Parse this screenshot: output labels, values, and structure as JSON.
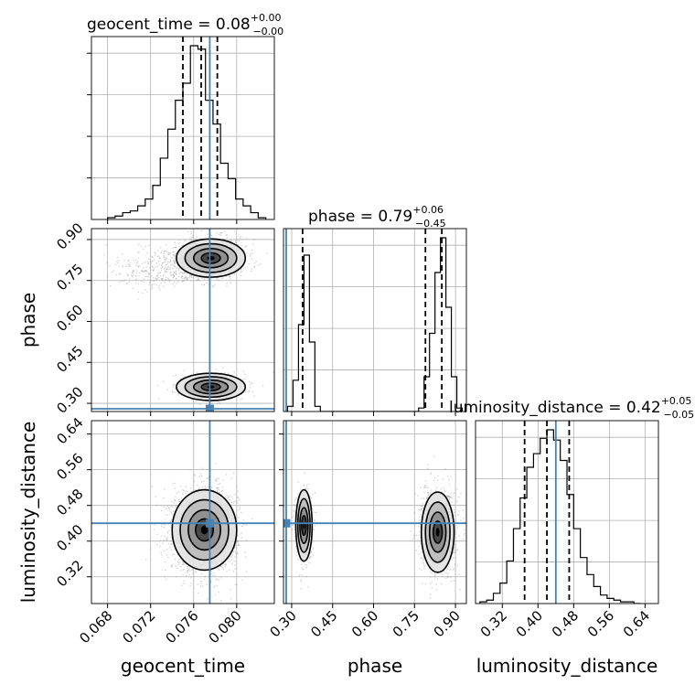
{
  "colors": {
    "truth": "#4682b4",
    "hist": "#000000",
    "grid": "#b0b0b0",
    "scatter": "#8a8a8a"
  },
  "titles": {
    "geocent_time": {
      "name": "geocent_time",
      "median": "0.08",
      "plus": "+0.00",
      "minus": "−0.00"
    },
    "phase": {
      "name": "phase",
      "median": "0.79",
      "plus": "+0.06",
      "minus": "−0.45"
    },
    "luminosity_distance": {
      "name": "luminosity_distance",
      "median": "0.42",
      "plus": "+0.05",
      "minus": "−0.05"
    }
  },
  "chart_data": {
    "type": "corner",
    "parameters": [
      "geocent_time",
      "phase",
      "luminosity_distance"
    ],
    "truths": {
      "geocent_time": 0.0775,
      "phase": 0.28,
      "luminosity_distance": 0.44
    },
    "axes": {
      "geocent_time": {
        "range": [
          0.0665,
          0.0835
        ],
        "ticks": [
          "0.068",
          "0.072",
          "0.076",
          "0.080"
        ],
        "tick_values": [
          0.068,
          0.072,
          0.076,
          0.08
        ],
        "label": "geocent_time"
      },
      "phase": {
        "range": [
          0.27,
          0.94
        ],
        "ticks": [
          "0.30",
          "0.45",
          "0.60",
          "0.75",
          "0.90"
        ],
        "tick_values": [
          0.3,
          0.45,
          0.6,
          0.75,
          0.9
        ],
        "label": "phase"
      },
      "luminosity_distance": {
        "range": [
          0.26,
          0.67
        ],
        "ticks": [
          "0.32",
          "0.40",
          "0.48",
          "0.56",
          "0.64"
        ],
        "tick_values": [
          0.32,
          0.4,
          0.48,
          0.56,
          0.64
        ],
        "label": "luminosity_distance"
      }
    },
    "histograms": [
      {
        "param": "geocent_time",
        "bin_edges": [
          0.068,
          0.0687,
          0.0694,
          0.0701,
          0.0708,
          0.0715,
          0.0722,
          0.0729,
          0.0736,
          0.0743,
          0.075,
          0.0757,
          0.0764,
          0.0771,
          0.0778,
          0.0785,
          0.0792,
          0.0799,
          0.0806,
          0.0813,
          0.082,
          0.0827
        ],
        "counts": [
          1,
          2,
          4,
          5,
          8,
          12,
          20,
          36,
          53,
          70,
          80,
          102,
          100,
          70,
          56,
          33,
          24,
          12,
          8,
          4,
          1
        ],
        "quantiles": [
          0.075,
          0.0767,
          0.0782
        ]
      },
      {
        "param": "phase",
        "bin_edges": [
          0.285,
          0.305,
          0.325,
          0.345,
          0.365,
          0.385,
          0.405,
          0.425,
          0.445,
          0.465,
          0.485,
          0.505,
          0.525,
          0.545,
          0.565,
          0.585,
          0.605,
          0.625,
          0.645,
          0.665,
          0.685,
          0.705,
          0.725,
          0.745,
          0.765,
          0.785,
          0.805,
          0.825,
          0.845,
          0.865,
          0.885,
          0.905,
          0.925
        ],
        "counts": [
          3,
          18,
          50,
          90,
          40,
          3,
          0,
          0,
          0,
          0,
          0,
          0,
          0,
          0,
          0,
          0,
          0,
          0,
          0,
          0,
          0,
          0,
          0,
          0,
          2,
          20,
          45,
          80,
          100,
          60,
          20,
          2
        ],
        "quantiles": [
          0.34,
          0.79,
          0.85
        ]
      },
      {
        "param": "luminosity_distance",
        "bin_edges": [
          0.27,
          0.285,
          0.3,
          0.315,
          0.33,
          0.345,
          0.36,
          0.375,
          0.39,
          0.405,
          0.42,
          0.435,
          0.45,
          0.465,
          0.48,
          0.495,
          0.51,
          0.525,
          0.54,
          0.555,
          0.57,
          0.585,
          0.6,
          0.615,
          0.63
        ],
        "counts": [
          1,
          2,
          6,
          12,
          25,
          44,
          62,
          80,
          88,
          97,
          102,
          96,
          84,
          64,
          44,
          27,
          17,
          10,
          5,
          3,
          2,
          1,
          1,
          0
        ],
        "quantiles": [
          0.37,
          0.42,
          0.47
        ]
      }
    ],
    "posterior_2d": [
      {
        "x": "geocent_time",
        "y": "phase",
        "modes": [
          {
            "center": [
              0.0776,
              0.832
            ],
            "sigma": [
              0.0016,
              0.035
            ],
            "weight": 0.8,
            "tail": {
              "dx": -0.0075,
              "dy": -0.06
            }
          },
          {
            "center": [
              0.0776,
              0.36
            ],
            "sigma": [
              0.0016,
              0.025
            ],
            "weight": 0.2
          }
        ]
      },
      {
        "x": "geocent_time",
        "y": "luminosity_distance",
        "modes": [
          {
            "center": [
              0.077,
              0.425
            ],
            "sigma": [
              0.0015,
              0.045
            ],
            "weight": 1.0
          }
        ]
      },
      {
        "x": "phase",
        "y": "luminosity_distance",
        "modes": [
          {
            "center": [
              0.345,
              0.435
            ],
            "sigma": [
              0.015,
              0.04
            ],
            "weight": 0.3
          },
          {
            "center": [
              0.835,
              0.42
            ],
            "sigma": [
              0.03,
              0.045
            ],
            "weight": 0.7
          }
        ]
      }
    ]
  }
}
